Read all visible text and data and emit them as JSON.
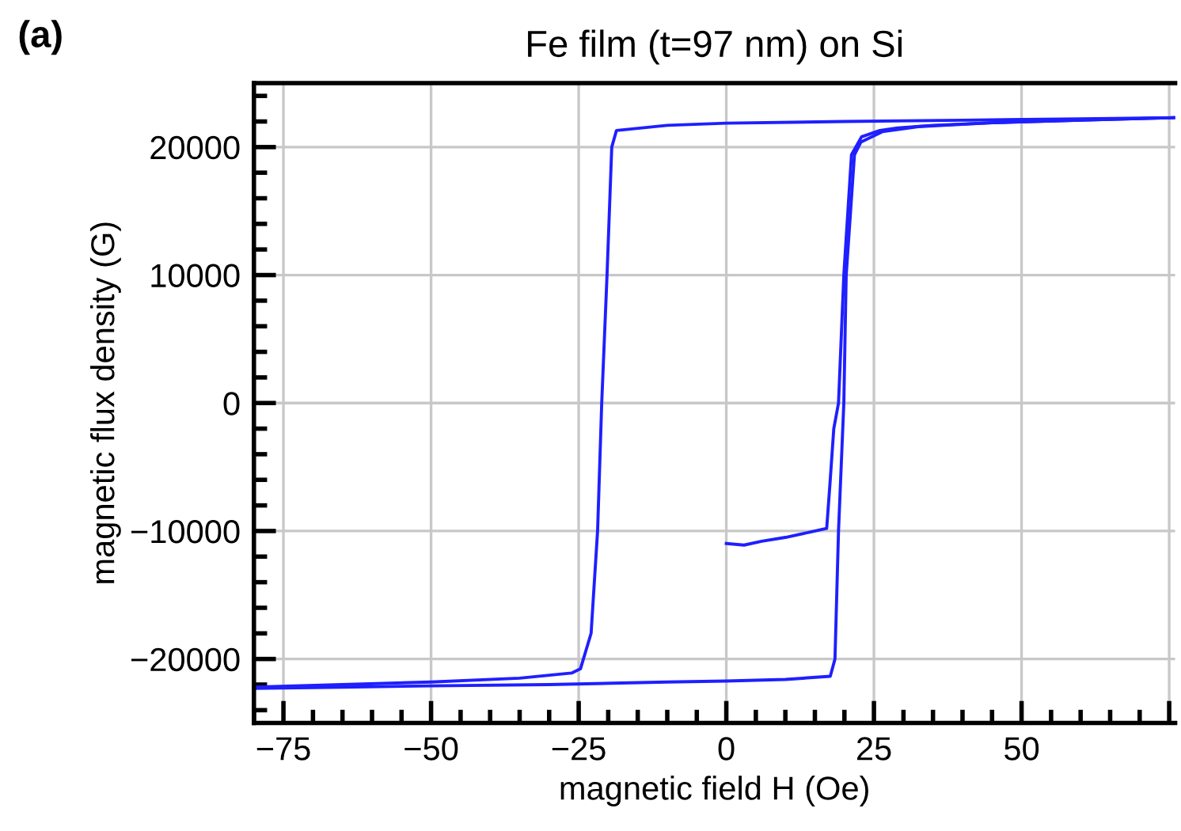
{
  "chart_data": {
    "type": "line",
    "title": "Fe film (t=97 nm) on Si",
    "annotations": [
      "(a)"
    ],
    "xlabel": "magnetic field H (Oe)",
    "ylabel": "magnetic flux density (G)",
    "xlim": [
      -80,
      76
    ],
    "ylim": [
      -25000,
      25000
    ],
    "xticks": [
      -75,
      -50,
      -25,
      0,
      25,
      50,
      {
        "value": 75,
        "label": null
      }
    ],
    "yticks": [
      -20000,
      -10000,
      0,
      10000,
      20000
    ],
    "grid": true,
    "legend": false,
    "marker": "none",
    "line_style": "solid",
    "series": [
      {
        "color": "#1f1fff",
        "x": [
          0,
          3,
          6,
          10,
          14,
          17,
          17.6,
          18.2,
          19.0,
          19.9,
          21.2,
          22.9,
          26,
          29,
          35,
          45,
          60,
          76
        ],
        "values": [
          -10970,
          -11100,
          -10800,
          -10500,
          -10100,
          -9800,
          -6000,
          -2000,
          0,
          10000,
          19400,
          20800,
          21300,
          21500,
          21700,
          21900,
          22100,
          22300
        ]
      },
      {
        "color": "#1f1fff",
        "x": [
          76,
          60,
          40,
          20,
          0,
          -10,
          -18.6,
          -19.4,
          -20.2,
          -21.1,
          -21.8,
          -22.9,
          -24.7,
          -26.2,
          -35,
          -50,
          -65,
          -80
        ],
        "values": [
          22300,
          22200,
          22100,
          22000,
          21870,
          21700,
          21300,
          20000,
          10000,
          0,
          -10000,
          -18000,
          -20770,
          -21100,
          -21500,
          -21800,
          -22000,
          -22200
        ]
      },
      {
        "color": "#1f1fff",
        "x": [
          -80,
          -65,
          -50,
          -30,
          -10,
          0,
          10,
          17.6,
          18.4,
          19.0,
          19.9,
          20.3,
          21.7,
          22.8,
          26.4,
          32.5,
          45,
          60,
          76
        ],
        "values": [
          -22300,
          -22200,
          -22100,
          -22000,
          -21800,
          -21720,
          -21600,
          -21350,
          -20000,
          -10000,
          0,
          10000,
          19400,
          20400,
          21200,
          21600,
          21900,
          22100,
          22300
        ]
      }
    ]
  }
}
